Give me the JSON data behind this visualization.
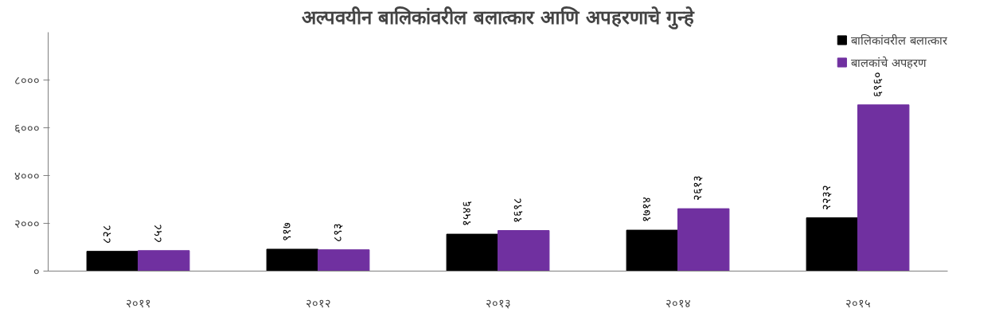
{
  "chart_data": {
    "type": "bar",
    "title": "अल्पवयीन बालिकांवरील बलात्कार आणि अपहरणाचे गुन्हे",
    "categories": [
      "२०११",
      "२०१२",
      "२०१३",
      "२०१४",
      "२०१५"
    ],
    "series": [
      {
        "name": "बालिकांवरील बलात्कार",
        "color": "#000000",
        "values": [
          828,
          917,
          1546,
          1714,
          2232
        ],
        "value_labels": [
          "८२८",
          "९१७",
          "१५४६",
          "१७१४",
          "२२३२"
        ]
      },
      {
        "name": "बालकांचे अपहरण",
        "color": "#7030a0",
        "values": [
          858,
          893,
          1698,
          2613,
          6960
        ],
        "value_labels": [
          "८५८",
          "८९३",
          "१६९८",
          "२६१३",
          "६९६०"
        ]
      }
    ],
    "ylim": [
      0,
      10000
    ],
    "yticks": [
      {
        "value": 0,
        "label": "०"
      },
      {
        "value": 2000,
        "label": "२०००"
      },
      {
        "value": 4000,
        "label": "४०००"
      },
      {
        "value": 6000,
        "label": "६०००"
      },
      {
        "value": 8000,
        "label": "८०००"
      }
    ],
    "grid": false,
    "legend": "top right"
  }
}
